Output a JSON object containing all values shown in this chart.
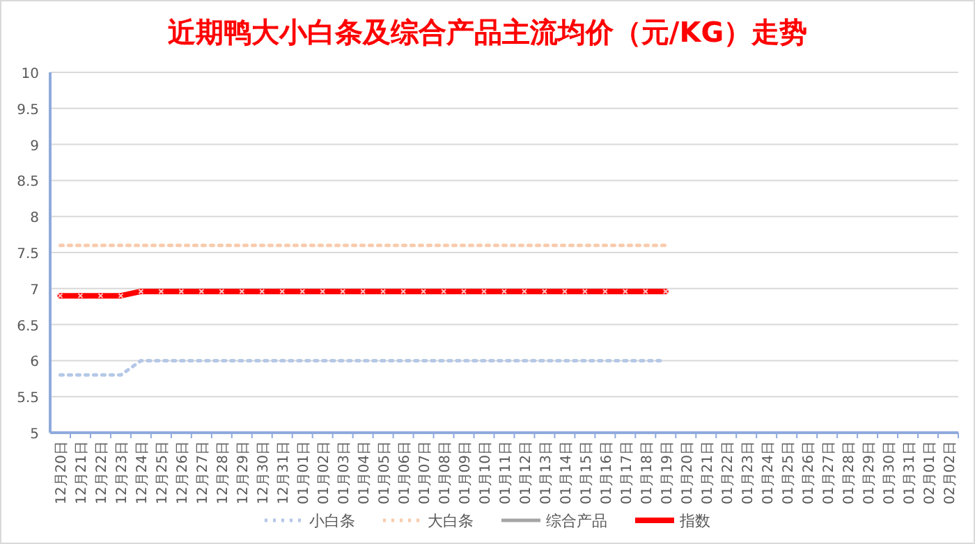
{
  "chart_data": {
    "type": "line",
    "title": "近期鸭大小白条及综合产品主流均价（元/KG）走势",
    "categories": [
      "12月20日",
      "12月21日",
      "12月22日",
      "12月23日",
      "12月24日",
      "12月25日",
      "12月26日",
      "12月27日",
      "12月28日",
      "12月29日",
      "12月30日",
      "12月31日",
      "01月01日",
      "01月02日",
      "01月03日",
      "01月04日",
      "01月05日",
      "01月06日",
      "01月07日",
      "01月08日",
      "01月09日",
      "01月10日",
      "01月11日",
      "01月12日",
      "01月13日",
      "01月14日",
      "01月15日",
      "01月16日",
      "01月17日",
      "01月18日",
      "01月19日",
      "01月20日",
      "01月21日",
      "01月22日",
      "01月23日",
      "01月24日",
      "01月25日",
      "01月26日",
      "01月27日",
      "01月28日",
      "01月29日",
      "01月30日",
      "01月31日",
      "02月01日",
      "02月02日"
    ],
    "series": [
      {
        "name": "小白条",
        "color": "#b4c7e7",
        "line_style": "dotted",
        "marker": "none",
        "values": [
          5.8,
          5.8,
          5.8,
          5.8,
          6,
          6,
          6,
          6,
          6,
          6,
          6,
          6,
          6,
          6,
          6,
          6,
          6,
          6,
          6,
          6,
          6,
          6,
          6,
          6,
          6,
          6,
          6,
          6,
          6,
          6,
          6,
          null,
          null,
          null,
          null,
          null,
          null,
          null,
          null,
          null,
          null,
          null,
          null,
          null,
          null
        ]
      },
      {
        "name": "大白条",
        "color": "#f8cbad",
        "line_style": "dotted",
        "marker": "none",
        "values": [
          7.6,
          7.6,
          7.6,
          7.6,
          7.6,
          7.6,
          7.6,
          7.6,
          7.6,
          7.6,
          7.6,
          7.6,
          7.6,
          7.6,
          7.6,
          7.6,
          7.6,
          7.6,
          7.6,
          7.6,
          7.6,
          7.6,
          7.6,
          7.6,
          7.6,
          7.6,
          7.6,
          7.6,
          7.6,
          7.6,
          7.6,
          null,
          null,
          null,
          null,
          null,
          null,
          null,
          null,
          null,
          null,
          null,
          null,
          null,
          null
        ]
      },
      {
        "name": "综合产品",
        "color": "#a5a5a5",
        "line_style": "solid",
        "marker": "none",
        "values": [
          null,
          null,
          null,
          null,
          null,
          null,
          null,
          null,
          null,
          null,
          null,
          null,
          null,
          null,
          null,
          null,
          null,
          null,
          null,
          null,
          null,
          null,
          null,
          null,
          null,
          null,
          null,
          null,
          null,
          null,
          null,
          null,
          null,
          null,
          null,
          null,
          null,
          null,
          null,
          null,
          null,
          null,
          null,
          null,
          null
        ]
      },
      {
        "name": "指数",
        "color": "#ff0000",
        "line_style": "solid",
        "marker": "cross",
        "values": [
          6.9,
          6.9,
          6.9,
          6.9,
          6.96,
          6.96,
          6.96,
          6.96,
          6.96,
          6.96,
          6.96,
          6.96,
          6.96,
          6.96,
          6.96,
          6.96,
          6.96,
          6.96,
          6.96,
          6.96,
          6.96,
          6.96,
          6.96,
          6.96,
          6.96,
          6.96,
          6.96,
          6.96,
          6.96,
          6.96,
          6.96,
          null,
          null,
          null,
          null,
          null,
          null,
          null,
          null,
          null,
          null,
          null,
          null,
          null,
          null
        ]
      }
    ],
    "ylim": [
      5,
      10
    ],
    "yticks": [
      5,
      5.5,
      6,
      6.5,
      7,
      7.5,
      8,
      8.5,
      9,
      9.5,
      10
    ],
    "grid": "y",
    "legend": "bottom"
  }
}
